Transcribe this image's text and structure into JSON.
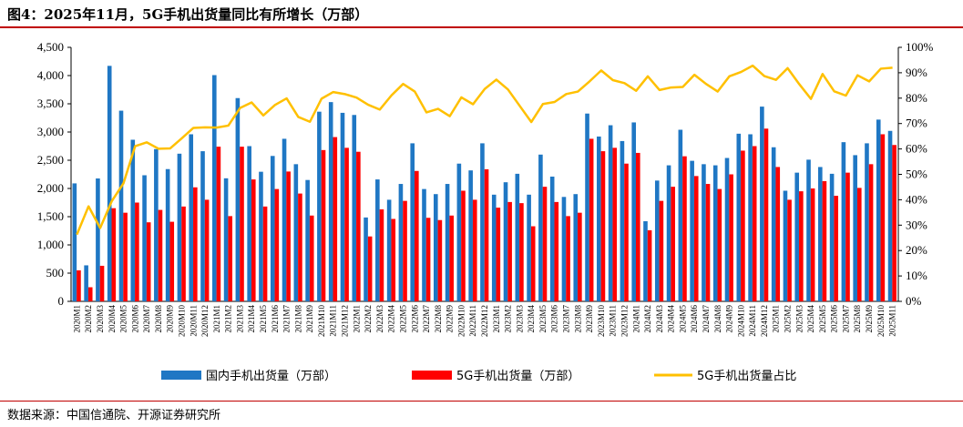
{
  "header": {
    "title": "图4：2025年11月，5G手机出货量同比有所增长（万部）"
  },
  "footer": {
    "source": "数据来源：中国信通院、开源证券研究所"
  },
  "colors": {
    "domestic": "#1f77c4",
    "fiveg": "#ff0000",
    "share": "#ffc000",
    "rule": "#c00000"
  },
  "chart_data": {
    "type": "bar",
    "categories": [
      "2020M1",
      "2020M2",
      "2020M3",
      "2020M4",
      "2020M5",
      "2020M6",
      "2020M7",
      "2020M8",
      "2020M9",
      "2020M10",
      "2020M11",
      "2020M12",
      "2021M1",
      "2021M2",
      "2021M3",
      "2021M4",
      "2021M5",
      "2021M6",
      "2021M7",
      "2021M8",
      "2021M9",
      "2021M10",
      "2021M11",
      "2021M12",
      "2022M1",
      "2022M2",
      "2022M3",
      "2022M4",
      "2022M5",
      "2022M6",
      "2022M7",
      "2022M8",
      "2022M9",
      "2022M10",
      "2022M11",
      "2022M12",
      "2023M1",
      "2023M2",
      "2023M3",
      "2023M4",
      "2023M5",
      "2023M6",
      "2023M7",
      "2023M8",
      "2023M9",
      "2023M10",
      "2023M11",
      "2023M12",
      "2024M1",
      "2024M2",
      "2024M3",
      "2024M4",
      "2024M5",
      "2024M6",
      "2024M7",
      "2024M8",
      "2024M9",
      "2024M10",
      "2024M11",
      "2024M12",
      "2025M1",
      "2025M2",
      "2025M3",
      "2025M4",
      "2025M5",
      "2025M6",
      "2025M7",
      "2025M8",
      "2025M9",
      "2025M10",
      "2025M11"
    ],
    "series": [
      {
        "name": "国内手机出货量（万部）",
        "type": "bar",
        "axis": "left",
        "values": [
          2090,
          638,
          2177,
          4172,
          3378,
          2863,
          2234,
          2697,
          2343,
          2616,
          2960,
          2660,
          4008,
          2180,
          3601,
          2750,
          2296,
          2576,
          2880,
          2430,
          2150,
          3360,
          3530,
          3340,
          3302,
          1486,
          2160,
          1800,
          2080,
          2800,
          1990,
          1900,
          2080,
          2440,
          2320,
          2800,
          1890,
          2110,
          2260,
          1890,
          2600,
          2210,
          1850,
          1900,
          3327,
          2920,
          3120,
          2840,
          3170,
          1420,
          2140,
          2410,
          3040,
          2490,
          2430,
          2410,
          2540,
          2970,
          2960,
          3450,
          2730,
          1960,
          2280,
          2510,
          2380,
          2260,
          2820,
          2590,
          2800,
          3220,
          3020
        ]
      },
      {
        "name": "5G手机出货量（万部）",
        "type": "bar",
        "axis": "left",
        "values": [
          550,
          250,
          630,
          1650,
          1570,
          1750,
          1400,
          1620,
          1410,
          1680,
          2020,
          1800,
          2740,
          1510,
          2740,
          2160,
          1680,
          1990,
          2300,
          1910,
          1520,
          2680,
          2910,
          2720,
          2650,
          1150,
          1630,
          1460,
          1780,
          2310,
          1480,
          1440,
          1520,
          1960,
          1800,
          2340,
          1660,
          1760,
          1740,
          1330,
          2030,
          1760,
          1510,
          1570,
          2880,
          2660,
          2720,
          2440,
          2630,
          1260,
          1780,
          2030,
          2570,
          2220,
          2080,
          1990,
          2250,
          2670,
          2750,
          3060,
          2380,
          1800,
          1950,
          2000,
          2130,
          1870,
          2280,
          2010,
          2430,
          2960,
          2770
        ]
      },
      {
        "name": "5G手机出货量占比",
        "type": "line",
        "axis": "right",
        "values": [
          26.3,
          37.4,
          28.9,
          39.5,
          46.5,
          61.1,
          62.6,
          60.1,
          60.2,
          64.2,
          68.3,
          68.5,
          68.4,
          69.2,
          76.1,
          78.3,
          73.2,
          77.3,
          79.9,
          72.6,
          70.7,
          79.8,
          82.4,
          81.6,
          80.2,
          77.4,
          75.5,
          81.1,
          85.6,
          82.6,
          74.4,
          75.8,
          72.9,
          80.3,
          77.6,
          83.6,
          87.3,
          83.4,
          77.0,
          70.6,
          77.7,
          78.5,
          81.6,
          82.6,
          86.6,
          90.9,
          87.1,
          85.9,
          82.9,
          88.6,
          83.2,
          84.2,
          84.4,
          89.2,
          85.6,
          82.6,
          88.6,
          90.3,
          92.8,
          88.7,
          87.2,
          91.8,
          85.5,
          79.7,
          89.5,
          82.7,
          81.0,
          89.0,
          86.6,
          91.6,
          92.0
        ]
      }
    ],
    "y_left": {
      "min": 0,
      "max": 4500,
      "ticks": [
        "0",
        "500",
        "1,000",
        "1,500",
        "2,000",
        "2,500",
        "3,000",
        "3,500",
        "4,000",
        "4,500"
      ]
    },
    "y_right": {
      "min": 0,
      "max": 100,
      "ticks": [
        "0%",
        "10%",
        "20%",
        "30%",
        "40%",
        "50%",
        "60%",
        "70%",
        "80%",
        "90%",
        "100%"
      ]
    },
    "grid": false,
    "legend": "bottom"
  }
}
